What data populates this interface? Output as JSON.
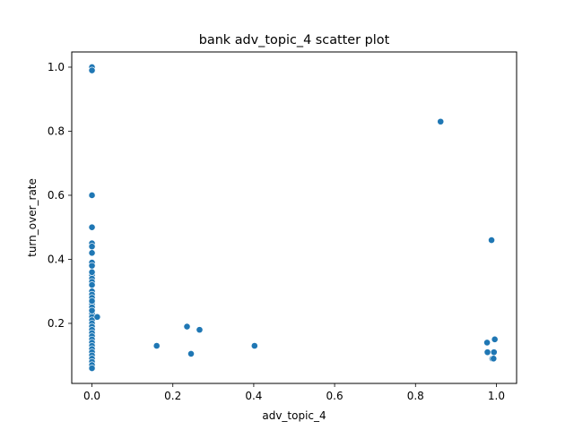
{
  "chart_data": {
    "type": "scatter",
    "title": "bank adv_topic_4 scatter plot",
    "xlabel": "adv_topic_4",
    "ylabel": "turn_over_rate",
    "xlim": [
      -0.05,
      1.05
    ],
    "ylim": [
      0.0125,
      1.0475
    ],
    "xticks": [
      0.0,
      0.2,
      0.4,
      0.6,
      0.8,
      1.0
    ],
    "xtick_labels": [
      "0.0",
      "0.2",
      "0.4",
      "0.6",
      "0.8",
      "1.0"
    ],
    "yticks": [
      0.2,
      0.4,
      0.6,
      0.8,
      1.0
    ],
    "ytick_labels": [
      "0.2",
      "0.4",
      "0.6",
      "0.8",
      "1.0"
    ],
    "grid": false,
    "marker_color": "#1f77b4",
    "marker_edge_color": "#ffffff",
    "series": [
      {
        "x": [
          0,
          0,
          0,
          0,
          0,
          0,
          0,
          0,
          0,
          0,
          0,
          0,
          0,
          0,
          0,
          0,
          0,
          0,
          0,
          0,
          0,
          0,
          0,
          0,
          0,
          0,
          0,
          0,
          0,
          0,
          0,
          0,
          0,
          0,
          0,
          0,
          0,
          0,
          0,
          0.013,
          0.16,
          0.235,
          0.245,
          0.266,
          0.402,
          0.862,
          0.977,
          0.978,
          0.988,
          0.99,
          0.993,
          0.994,
          0.996
        ],
        "y": [
          1.0,
          0.99,
          0.6,
          0.5,
          0.45,
          0.44,
          0.42,
          0.39,
          0.38,
          0.35,
          0.34,
          0.33,
          0.3,
          0.29,
          0.28,
          0.26,
          0.25,
          0.23,
          0.22,
          0.21,
          0.2,
          0.19,
          0.18,
          0.17,
          0.16,
          0.15,
          0.14,
          0.13,
          0.12,
          0.11,
          0.1,
          0.09,
          0.08,
          0.07,
          0.06,
          0.24,
          0.27,
          0.32,
          0.36,
          0.22,
          0.13,
          0.19,
          0.105,
          0.18,
          0.13,
          0.83,
          0.14,
          0.11,
          0.46,
          0.09,
          0.09,
          0.11,
          0.15
        ]
      }
    ]
  }
}
